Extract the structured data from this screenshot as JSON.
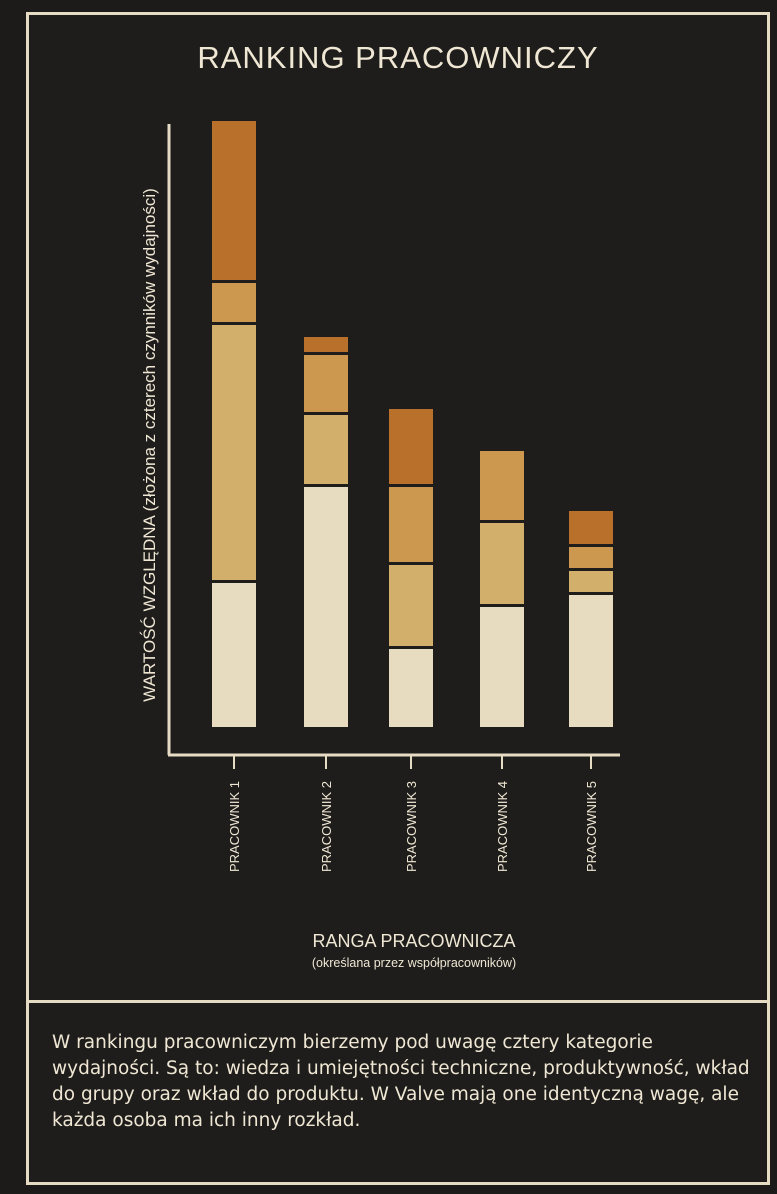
{
  "chart_data": {
    "type": "bar",
    "stacked": true,
    "title": "RANKING PRACOWNICZY",
    "xlabel": "RANGA PRACOWNICZA",
    "xlabel_sub": "(określana przez współpracowników)",
    "ylabel": "WARTOŚĆ WZGLĘDNA (złożona z czterech czynników wydajności)",
    "categories": [
      "PRACOWNIK 1",
      "PRACOWNIK 2",
      "PRACOWNIK 3",
      "PRACOWNIK 4",
      "PRACOWNIK 5"
    ],
    "ylim": [
      0,
      100
    ],
    "grid": false,
    "series": [
      {
        "values": [
          24,
          40,
          13,
          20,
          22
        ],
        "color": "#e8dcc0"
      },
      {
        "values": [
          43,
          12,
          14,
          14,
          4
        ],
        "color": "#d2b06c"
      },
      {
        "values": [
          7,
          10,
          13,
          12,
          4
        ],
        "color": "#cc9850"
      },
      {
        "values": [
          27,
          3,
          13,
          0,
          6
        ],
        "color": "#b8702a"
      }
    ]
  },
  "footer": {
    "text": "W rankingu pracowniczym bierzemy pod uwagę cztery kategorie wydajności. Są to: wiedza i umiejętności techniczne, produktywność, wkład do grupy oraz wkład do produktu. W Valve mają one identyczną wagę, ale każda osoba ma ich inny rozkład."
  },
  "colors": {
    "background": "#1e1d1c",
    "ink": "#efe7d3",
    "axis": "#e6dcc3"
  }
}
